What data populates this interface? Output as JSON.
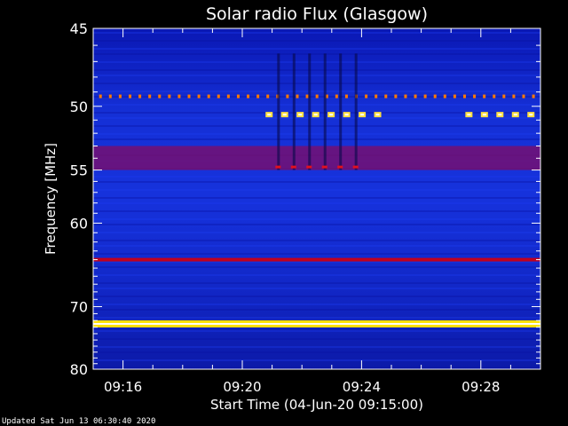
{
  "chart_data": {
    "type": "heatmap",
    "title": "Solar radio Flux (Glasgow)",
    "xlabel": "Start Time (04-Jun-20 09:15:00)",
    "ylabel": "Frequency [MHz]",
    "x_range_minutes": [
      0,
      15.0
    ],
    "x_ticks": [
      {
        "label": "09:16",
        "minute": 1
      },
      {
        "label": "09:20",
        "minute": 5
      },
      {
        "label": "09:24",
        "minute": 9
      },
      {
        "label": "09:28",
        "minute": 13
      }
    ],
    "y_scale": "reciprocal",
    "ylim": [
      45,
      80
    ],
    "y_ticks": [
      45,
      50,
      55,
      60,
      70,
      80
    ],
    "features": [
      {
        "kind": "continuous",
        "freq_mhz": 72.5,
        "color": "#ffe000",
        "core": "#ffffff"
      },
      {
        "kind": "continuous",
        "freq_mhz": 64.0,
        "color": "#c0001e"
      },
      {
        "kind": "band",
        "freq_from": 53.0,
        "freq_to": 55.0,
        "color": "#7a0e6a"
      },
      {
        "kind": "intermittent",
        "freq_mhz": 49.3,
        "color": "#ff7a00"
      },
      {
        "kind": "bursts",
        "freq_mhz": 50.6,
        "minutes_from": 5.9,
        "minutes_to": 9.6,
        "color": "#ffe040"
      },
      {
        "kind": "bursts",
        "freq_mhz": 50.6,
        "minutes_from": 12.6,
        "minutes_to": 14.9,
        "color": "#ffe040"
      }
    ],
    "colors": {
      "background": "#1428d0",
      "deep": "#0a10a0",
      "hot": "#ffff00"
    }
  },
  "footer": {
    "updated": "Updated Sat Jun 13 06:30:40 2020"
  }
}
